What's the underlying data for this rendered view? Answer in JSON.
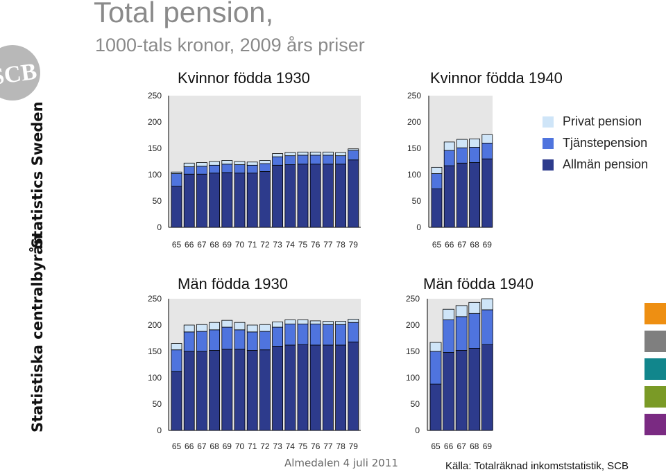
{
  "header": {
    "title": "Total pension,",
    "subtitle": "1000-tals kronor, 2009 års priser"
  },
  "side": {
    "logo_text": "SCB",
    "vertical_en": "Statistics Sweden",
    "vertical_sv": "Statistiska centralbyrån"
  },
  "legend": {
    "items": [
      {
        "label": "Privat pension",
        "color": "#cfe5f8"
      },
      {
        "label": "Tjänstepension",
        "color": "#4f74de"
      },
      {
        "label": "Allmän pension",
        "color": "#2d3b8c"
      }
    ]
  },
  "colors": {
    "allman": "#2d3b8c",
    "tjanste": "#4f74de",
    "privat": "#cfe5f8",
    "plot_bg": "#e6e6e6",
    "squares": [
      "#ee8f12",
      "#7f7f7f",
      "#11868c",
      "#7a9a26",
      "#7a2a82"
    ]
  },
  "footer": {
    "center": "Almedalen 4 juli 2011",
    "source": "Källa: Totalräknad inkomststatistik, SCB"
  },
  "chart_data": [
    {
      "type": "bar",
      "stacked": true,
      "title": "Kvinnor födda 1930",
      "categories": [
        "65",
        "66",
        "67",
        "68",
        "69",
        "70",
        "71",
        "72",
        "73",
        "74",
        "75",
        "76",
        "77",
        "78",
        "79"
      ],
      "ylim": [
        0,
        250
      ],
      "yticks": [
        "0",
        "50",
        "100",
        "150",
        "200",
        "250"
      ],
      "series": [
        {
          "name": "Allmän pension",
          "values": [
            78,
            101,
            101,
            103,
            104,
            103,
            103,
            106,
            118,
            119,
            120,
            120,
            120,
            120,
            128
          ]
        },
        {
          "name": "Tjänstepension",
          "values": [
            24,
            14,
            15,
            15,
            16,
            16,
            15,
            15,
            16,
            17,
            17,
            17,
            17,
            16,
            18
          ]
        },
        {
          "name": "Privat pension",
          "values": [
            3,
            7,
            7,
            7,
            7,
            6,
            6,
            6,
            6,
            6,
            6,
            6,
            6,
            6,
            3
          ]
        }
      ]
    },
    {
      "type": "bar",
      "stacked": true,
      "title": "Kvinnor födda 1940",
      "categories": [
        "65",
        "66",
        "67",
        "68",
        "69"
      ],
      "ylim": [
        0,
        250
      ],
      "yticks": [
        "0",
        "50",
        "100",
        "150",
        "200",
        "250"
      ],
      "series": [
        {
          "name": "Allmän pension",
          "values": [
            73,
            117,
            122,
            123,
            130
          ]
        },
        {
          "name": "Tjänstepension",
          "values": [
            29,
            29,
            29,
            29,
            30
          ]
        },
        {
          "name": "Privat pension",
          "values": [
            12,
            16,
            16,
            16,
            16
          ]
        }
      ]
    },
    {
      "type": "bar",
      "stacked": true,
      "title": "Män födda 1930",
      "categories": [
        "65",
        "66",
        "67",
        "68",
        "69",
        "70",
        "71",
        "72",
        "73",
        "74",
        "75",
        "76",
        "77",
        "78",
        "79"
      ],
      "ylim": [
        0,
        250
      ],
      "yticks": [
        "0",
        "50",
        "100",
        "150",
        "200",
        "250"
      ],
      "series": [
        {
          "name": "Allmän pension",
          "values": [
            112,
            150,
            150,
            152,
            154,
            154,
            152,
            153,
            160,
            162,
            163,
            162,
            162,
            162,
            168
          ]
        },
        {
          "name": "Tjänstepension",
          "values": [
            41,
            37,
            38,
            39,
            42,
            37,
            35,
            35,
            36,
            40,
            39,
            40,
            39,
            39,
            37
          ]
        },
        {
          "name": "Privat pension",
          "values": [
            12,
            13,
            13,
            14,
            13,
            14,
            13,
            13,
            10,
            8,
            8,
            6,
            6,
            6,
            6
          ]
        }
      ]
    },
    {
      "type": "bar",
      "stacked": true,
      "title": "Män födda 1940",
      "categories": [
        "65",
        "66",
        "67",
        "68",
        "69"
      ],
      "ylim": [
        0,
        250
      ],
      "yticks": [
        "0",
        "50",
        "100",
        "150",
        "200",
        "250"
      ],
      "series": [
        {
          "name": "Allmän pension",
          "values": [
            88,
            148,
            152,
            156,
            163
          ]
        },
        {
          "name": "Tjänstepension",
          "values": [
            62,
            62,
            64,
            66,
            66
          ]
        },
        {
          "name": "Privat pension",
          "values": [
            17,
            20,
            21,
            21,
            21
          ]
        }
      ]
    }
  ]
}
